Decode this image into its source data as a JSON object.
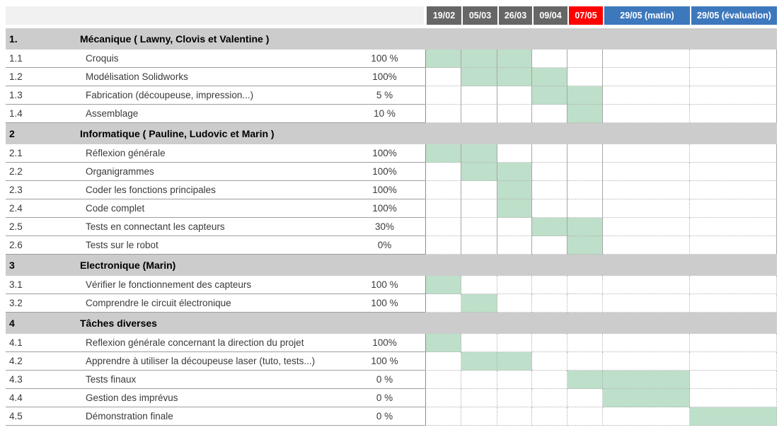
{
  "colors": {
    "header_dark": "#666666",
    "header_red": "#ff0000",
    "header_blue": "#3d78bd",
    "header_left_band": "#f1f1f1",
    "section_band": "#cccccc",
    "mark_green": "#bedfc9"
  },
  "date_columns": [
    {
      "label": "19/02",
      "color": "dark"
    },
    {
      "label": "05/03",
      "color": "dark"
    },
    {
      "label": "26/03",
      "color": "dark"
    },
    {
      "label": "09/04",
      "color": "dark"
    },
    {
      "label": "07/05",
      "color": "red"
    },
    {
      "label": "29/05 (matin)",
      "color": "blue"
    },
    {
      "label": "29/05 (évaluation)",
      "color": "blue"
    }
  ],
  "sections": [
    {
      "num": "1.",
      "title": "Mécanique ( Lawny, Clovis et Valentine )",
      "tasks": [
        {
          "num": "1.1",
          "name": "Croquis",
          "pct": "100 %",
          "marks": [
            1,
            2,
            3
          ]
        },
        {
          "num": "1.2",
          "name": "Modélisation Solidworks",
          "pct": "100%",
          "marks": [
            2,
            3,
            4
          ]
        },
        {
          "num": "1.3",
          "name": "Fabrication (découpeuse, impression...)",
          "pct": "5 %",
          "marks": [
            4,
            5
          ]
        },
        {
          "num": "1.4",
          "name": "Assemblage",
          "pct": "10 %",
          "marks": [
            5
          ]
        }
      ]
    },
    {
      "num": "2",
      "title": "Informatique ( Pauline, Ludovic et Marin )",
      "tasks": [
        {
          "num": "2.1",
          "name": "Réflexion générale",
          "pct": "100%",
          "marks": [
            1,
            2
          ]
        },
        {
          "num": "2.2",
          "name": "Organigrammes",
          "pct": "100%",
          "marks": [
            2,
            3
          ]
        },
        {
          "num": "2.3",
          "name": "Coder les fonctions principales",
          "pct": "100%",
          "marks": [
            3
          ]
        },
        {
          "num": "2.4",
          "name": "Code complet",
          "pct": "100%",
          "marks": [
            3
          ]
        },
        {
          "num": "2.5",
          "name": "Tests en connectant les capteurs",
          "pct": "30%",
          "marks": [
            4,
            5
          ]
        },
        {
          "num": "2.6",
          "name": "Tests sur le robot",
          "pct": "0%",
          "marks": [
            5
          ]
        }
      ]
    },
    {
      "num": "3",
      "title": "Electronique (Marin)",
      "tasks": [
        {
          "num": "3.1",
          "name": "Vérifier le fonctionnement des capteurs",
          "pct": "100 %",
          "marks": [
            1
          ]
        },
        {
          "num": "3.2",
          "name": "Comprendre le circuit électronique",
          "pct": "100 %",
          "marks": [
            2
          ]
        }
      ]
    },
    {
      "num": "4",
      "title": "Tâches diverses",
      "tasks": [
        {
          "num": "4.1",
          "name": "Reflexion générale concernant la direction du projet",
          "pct": "100%",
          "marks": [
            1
          ]
        },
        {
          "num": "4.2",
          "name": "Apprendre à utiliser la découpeuse laser (tuto, tests...)",
          "pct": "100 %",
          "marks": [
            2,
            3
          ]
        },
        {
          "num": "4.3",
          "name": "Tests finaux",
          "pct": "0 %",
          "marks": [
            5,
            6
          ]
        },
        {
          "num": "4.4",
          "name": "Gestion des imprévus",
          "pct": "0 %",
          "marks": [
            6
          ]
        },
        {
          "num": "4.5",
          "name": "Démonstration finale",
          "pct": "0 %",
          "marks": [
            7
          ]
        }
      ]
    }
  ]
}
